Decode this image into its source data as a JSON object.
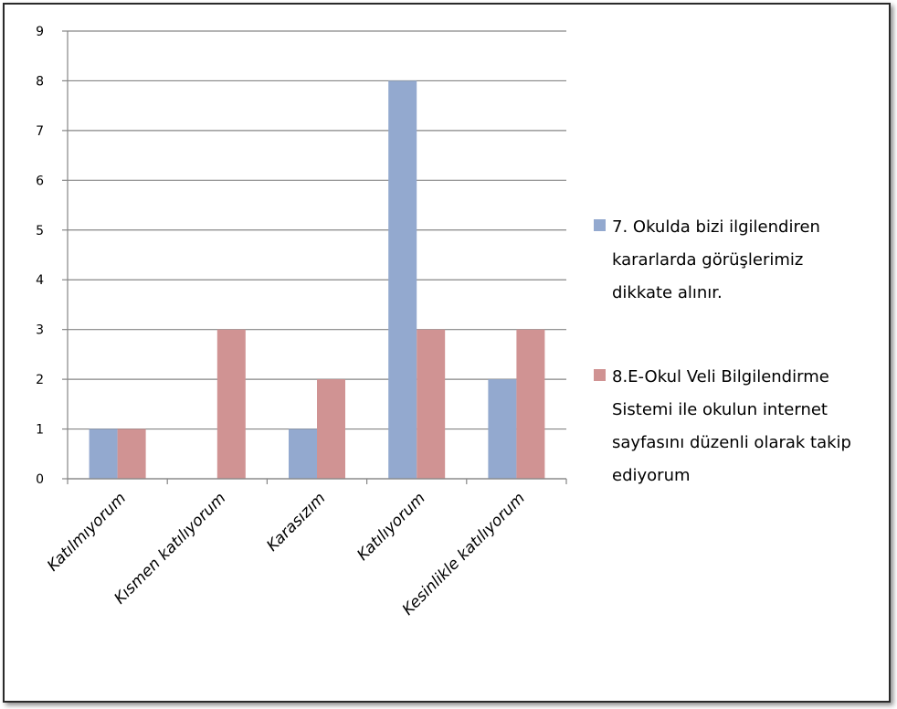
{
  "chart_data": {
    "type": "bar",
    "categories": [
      "Katılmıyorum",
      "Kısmen katılıyorum",
      "Karasızım",
      "Katılıyorum",
      "Kesinlikle katılıyorum"
    ],
    "series": [
      {
        "name": "7. Okulda bizi ilgilendiren kararlarda görüşlerimiz dikkate alınır.",
        "name_lines": [
          "7. Okulda bizi ilgilendiren",
          "kararlarda görüşlerimiz",
          "dikkate alınır."
        ],
        "values": [
          1,
          0,
          1,
          8,
          2
        ],
        "color": "#93a9cf"
      },
      {
        "name": "8.E-Okul Veli Bilgilendirme Sistemi ile okulun internet sayfasını düzenli olarak takip ediyorum",
        "name_lines": [
          "8.E-Okul Veli Bilgilendirme",
          "Sistemi ile okulun internet",
          "sayfasını düzenli olarak takip",
          "ediyorum"
        ],
        "values": [
          1,
          3,
          2,
          3,
          3
        ],
        "color": "#d09393"
      }
    ],
    "yticks": [
      "0",
      "1",
      "2",
      "3",
      "4",
      "5",
      "6",
      "7",
      "8",
      "9"
    ],
    "ylim": [
      0,
      9
    ],
    "grid": true,
    "legend_position": "right"
  }
}
